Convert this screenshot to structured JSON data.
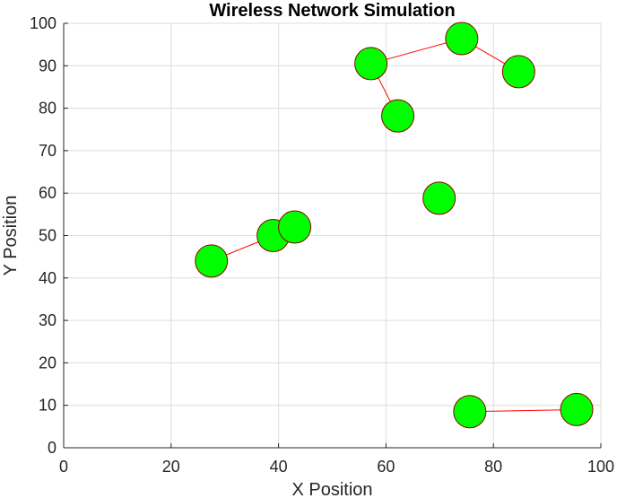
{
  "chart_data": {
    "type": "scatter",
    "title": "Wireless Network Simulation",
    "xlabel": "X Position",
    "ylabel": "Y Position",
    "xlim": [
      0,
      100
    ],
    "ylim": [
      0,
      100
    ],
    "xticks": [
      "0",
      "20",
      "40",
      "60",
      "80",
      "100"
    ],
    "yticks": [
      "0",
      "10",
      "20",
      "30",
      "40",
      "50",
      "60",
      "70",
      "80",
      "90",
      "100"
    ],
    "grid": true,
    "node_fill_color": "#00ff00",
    "node_edge_color": "#8b0000",
    "link_color": "#ff0000",
    "nodes": [
      {
        "x": 27.5,
        "y": 44
      },
      {
        "x": 39,
        "y": 50
      },
      {
        "x": 43,
        "y": 52
      },
      {
        "x": 57.2,
        "y": 90.5
      },
      {
        "x": 62.2,
        "y": 78.2
      },
      {
        "x": 74.1,
        "y": 96.4
      },
      {
        "x": 84.7,
        "y": 88.6
      },
      {
        "x": 69.9,
        "y": 58.8
      },
      {
        "x": 75.6,
        "y": 8.5
      },
      {
        "x": 95.5,
        "y": 9
      }
    ],
    "links": [
      [
        0,
        2
      ],
      [
        3,
        5
      ],
      [
        5,
        6
      ],
      [
        3,
        4
      ],
      [
        8,
        9
      ]
    ]
  }
}
